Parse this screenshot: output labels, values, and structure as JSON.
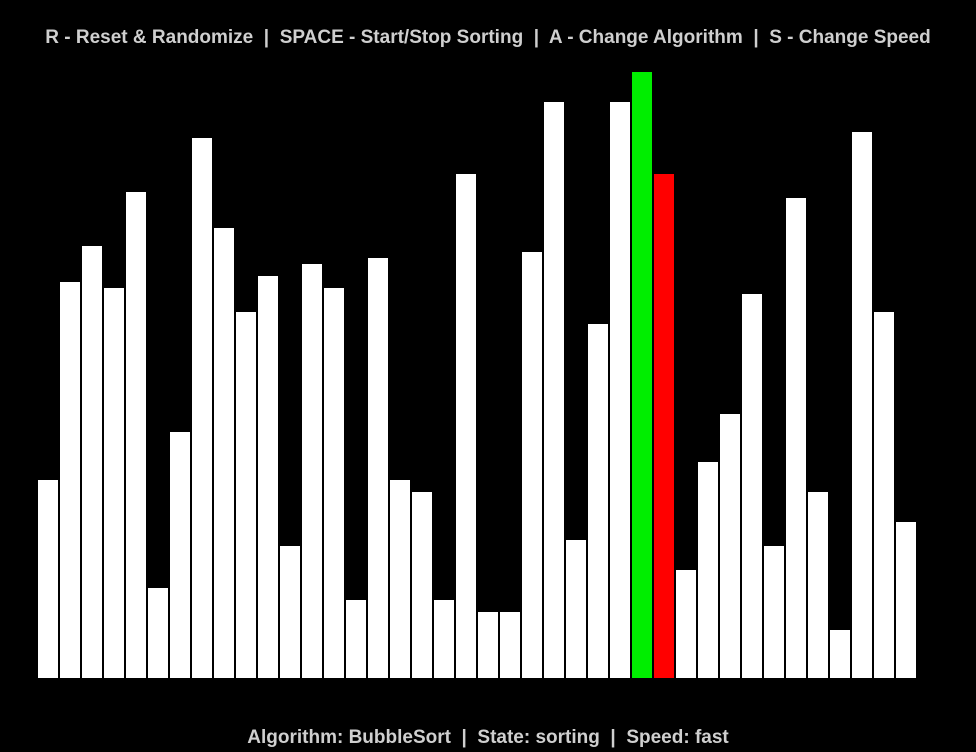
{
  "help": {
    "reset": "R - Reset & Randomize",
    "start_stop": "SPACE - Start/Stop Sorting",
    "change_algorithm": "A - Change Algorithm",
    "change_speed": "S - Change Speed",
    "separator": "  |  "
  },
  "status": {
    "algorithm_label": "Algorithm: ",
    "algorithm": "BubbleSort",
    "state_label": "State: ",
    "state": "sorting",
    "speed_label": "Speed: ",
    "speed": "fast",
    "separator": "  |  "
  },
  "colors": {
    "background": "#000000",
    "bar": "#ffffff",
    "compare_a": "#00ee00",
    "compare_b": "#ff0000",
    "text": "#cfcfcf"
  },
  "array": {
    "max_value": 101,
    "values": [
      33,
      66,
      72,
      65,
      81,
      15,
      41,
      90,
      75,
      61,
      67,
      22,
      69,
      65,
      13,
      70,
      33,
      31,
      13,
      84,
      11,
      11,
      71,
      96,
      23,
      59,
      96,
      101,
      84,
      18,
      36,
      44,
      64,
      22,
      80,
      31,
      8,
      91,
      61,
      26
    ],
    "highlight_green_index": 27,
    "highlight_red_index": 28
  }
}
